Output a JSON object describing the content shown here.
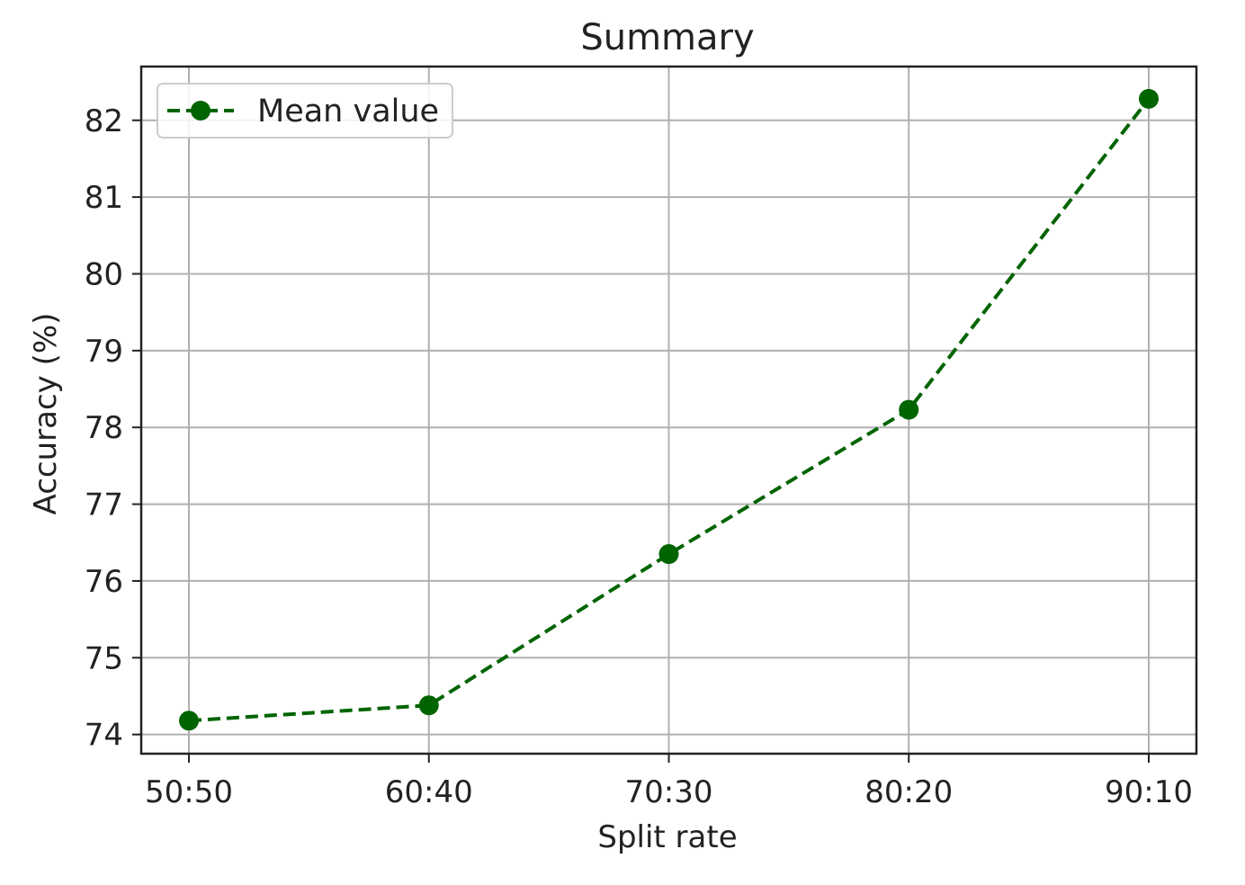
{
  "chart_data": {
    "type": "line",
    "title": "Summary",
    "xlabel": "Split rate",
    "ylabel": "Accuracy (%)",
    "categories": [
      "50:50",
      "60:40",
      "70:30",
      "80:20",
      "90:10"
    ],
    "series": [
      {
        "name": "Mean value",
        "values": [
          74.18,
          74.38,
          76.35,
          78.23,
          82.28
        ],
        "color": "#006400",
        "line_style": "dashed",
        "marker": "circle"
      }
    ],
    "yticks": [
      74,
      75,
      76,
      77,
      78,
      79,
      80,
      81,
      82
    ],
    "ylim": [
      73.75,
      82.7
    ],
    "grid": true,
    "legend_position": "top-left"
  }
}
